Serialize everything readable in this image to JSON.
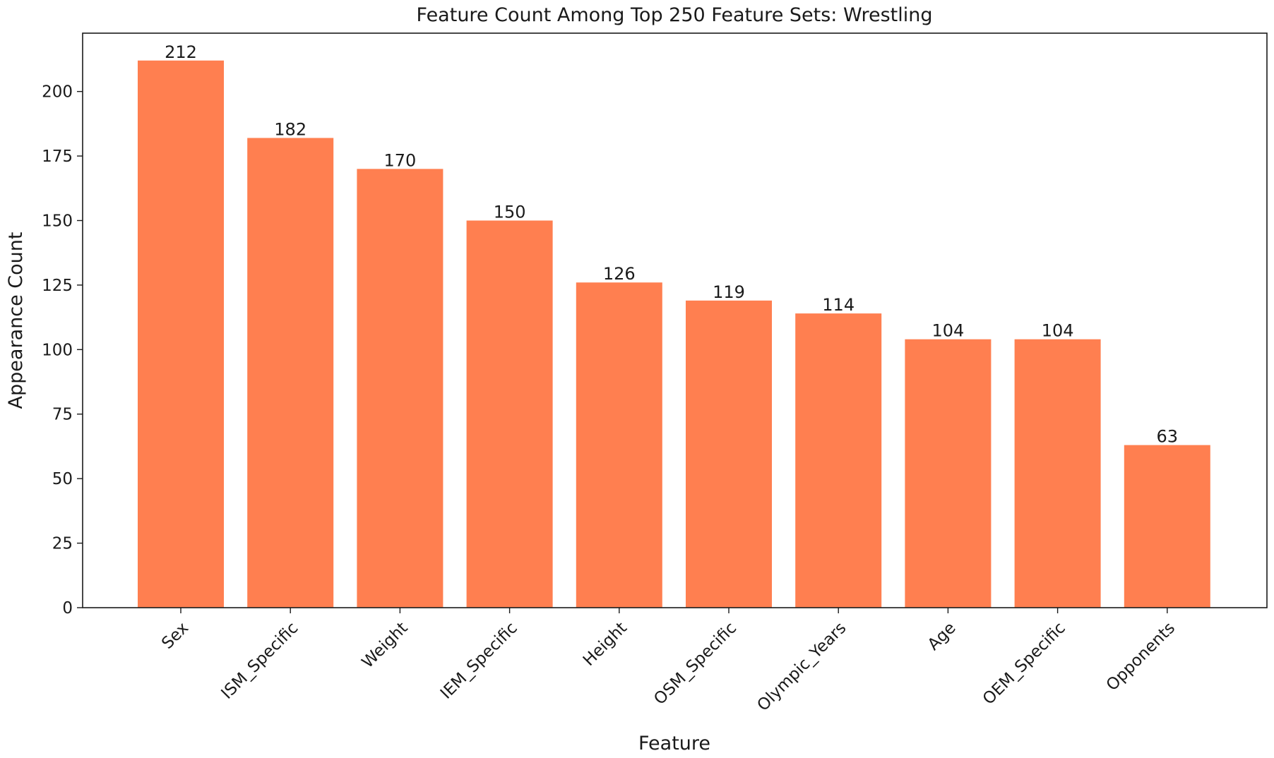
{
  "chart_data": {
    "type": "bar",
    "title": "Feature Count Among Top 250 Feature Sets: Wrestling",
    "xlabel": "Feature",
    "ylabel": "Appearance Count",
    "categories": [
      "Sex",
      "ISM_Specific",
      "Weight",
      "IEM_Specific",
      "Height",
      "OSM_Specific",
      "Olympic_Years",
      "Age",
      "OEM_Specific",
      "Opponents"
    ],
    "values": [
      212,
      182,
      170,
      150,
      126,
      119,
      114,
      104,
      104,
      63
    ],
    "data_labels": [
      "212",
      "182",
      "170",
      "150",
      "126",
      "119",
      "114",
      "104",
      "104",
      "63"
    ],
    "yticks": [
      0,
      25,
      50,
      75,
      100,
      125,
      150,
      175,
      200
    ],
    "ylim": [
      0,
      222.6
    ],
    "bar_color": "#ff7f50",
    "grid": false
  }
}
